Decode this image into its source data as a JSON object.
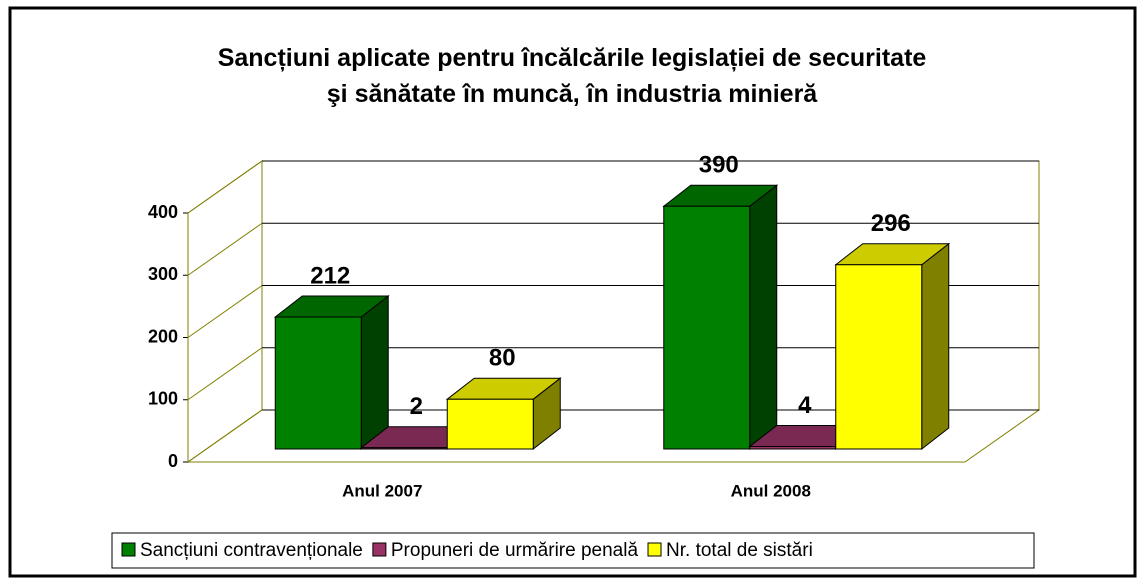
{
  "chart_data": {
    "type": "bar3d",
    "title": "Sancțiuni aplicate pentru încălcările legislației de securitate\nşi sănătate în muncă, în industria minieră",
    "categories": [
      "Anul 2007",
      "Anul 2008"
    ],
    "series": [
      {
        "name": "Sancțiuni contravenționale",
        "color": "#008000",
        "values": [
          212,
          390
        ]
      },
      {
        "name": "Propuneri de urmărire penală",
        "color": "#993366",
        "values": [
          2,
          4
        ]
      },
      {
        "name": "Nr. total de sistări",
        "color": "#ffff00",
        "values": [
          80,
          296
        ]
      }
    ],
    "ylim": [
      0,
      400
    ],
    "yticks": [
      0,
      100,
      200,
      300,
      400
    ],
    "grid": true,
    "legend": "bottom"
  }
}
